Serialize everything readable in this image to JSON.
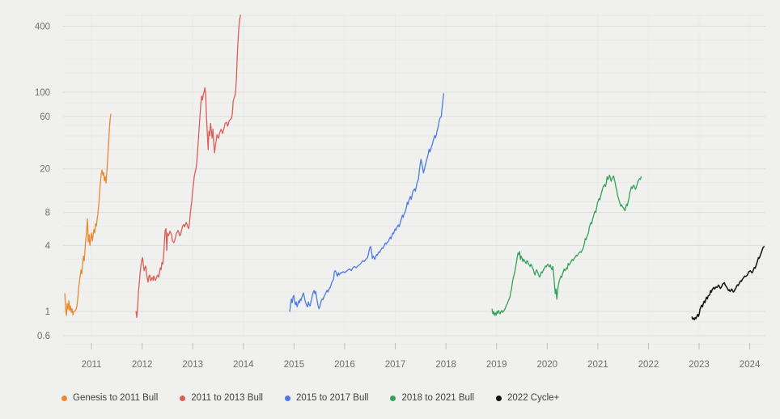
{
  "style": {
    "background": "#f0f0ee",
    "grid_major": "#dcdcda",
    "grid_minor": "#e9e9e7",
    "grid_vertical": "#ebebe9",
    "tick_color": "#bdbdbb",
    "axis_text": "#6e6e6e",
    "legend_text": "#3f3f3f"
  },
  "chart_data": {
    "type": "line",
    "title": "",
    "y_axis": {
      "scale": "log",
      "labeled_ticks": [
        400,
        100,
        60,
        20,
        8,
        4,
        1,
        0.6
      ],
      "minor_gridlines": [
        500,
        300,
        200,
        150,
        80,
        50,
        40,
        30,
        15,
        10,
        6,
        3,
        2,
        1.5,
        0.8,
        0.5
      ],
      "range": [
        0.5,
        520
      ]
    },
    "x_axis": {
      "ticks": [
        2011,
        2012,
        2013,
        2014,
        2015,
        2016,
        2017,
        2018,
        2019,
        2020,
        2021,
        2022,
        2023,
        2024
      ],
      "range": [
        2010.44,
        2024.31
      ]
    },
    "grid": true,
    "legend_position": "bottom",
    "series": [
      {
        "name": "Genesis to 2011 Bull",
        "color": "#ea8a30",
        "start_year": 2010.473,
        "year_step": 0.016,
        "values": [
          1.45,
          1.05,
          0.92,
          1.18,
          1.05,
          1.25,
          1.02,
          1.12,
          0.98,
          1.06,
          0.93,
          1.0,
          1.0,
          1.02,
          1.05,
          1.12,
          1.3,
          1.6,
          1.85,
          2.1,
          2.4,
          2.2,
          2.7,
          3.2,
          2.9,
          3.7,
          4.6,
          5.5,
          7.0,
          4.3,
          5.0,
          4.0,
          4.6,
          5.2,
          4.4,
          5.0,
          5.6,
          5.2,
          6.3,
          6.0,
          7.0,
          8.0,
          9.5,
          12,
          15,
          18,
          19.5,
          17.5,
          18.5,
          15.5,
          17,
          14.8,
          19,
          25,
          33,
          45,
          57,
          63
        ]
      },
      {
        "name": "2011 to 2013 Bull",
        "color": "#e05d55",
        "start_year": 2011.879,
        "year_step": 0.016,
        "values": [
          1.0,
          0.88,
          1.1,
          1.5,
          1.8,
          2.2,
          2.6,
          2.9,
          3.1,
          2.7,
          2.35,
          2.5,
          2.6,
          2.2,
          2.0,
          1.85,
          2.1,
          2.15,
          1.9,
          1.95,
          2.05,
          1.92,
          2.1,
          2.0,
          1.92,
          2.0,
          2.1,
          2.15,
          2.05,
          2.25,
          2.5,
          2.4,
          2.8,
          2.7,
          3.1,
          4.2,
          5.5,
          5.7,
          3.6,
          5.2,
          4.9,
          5.1,
          5.4,
          5.2,
          5.0,
          4.4,
          4.3,
          4.25,
          4.5,
          4.8,
          5.2,
          5.3,
          5.5,
          5.2,
          4.9,
          5.0,
          5.4,
          5.8,
          6.1,
          6.2,
          5.9,
          6.2,
          6.5,
          6.2,
          5.9,
          5.7,
          6.3,
          7.7,
          9.0,
          10.2,
          12.7,
          14.5,
          17.0,
          18.5,
          20.0,
          23.0,
          29.0,
          37.0,
          48.0,
          62.0,
          78.0,
          92.0,
          85.0,
          95.0,
          100,
          110,
          95.0,
          60.0,
          42.0,
          30.0,
          44.0,
          40.0,
          52.0,
          45.0,
          38.0,
          46.0,
          34.0,
          28.0,
          33.0,
          36.0,
          41.0,
          39.0,
          38.0,
          42.0,
          44.0,
          46.0,
          44.0,
          42.0,
          45.0,
          48.0,
          52.0,
          53.0,
          53.0,
          49.0,
          51.0,
          55.0,
          56.0,
          57.0,
          58.0,
          64.0,
          83.0,
          88.0,
          92.0,
          101,
          133,
          210,
          300,
          390,
          460,
          505
        ]
      },
      {
        "name": "2015 to 2017 Bull",
        "color": "#4b7ae8",
        "start_year": 2014.916,
        "year_step": 0.016,
        "values": [
          1.0,
          1.15,
          1.3,
          1.2,
          1.35,
          1.4,
          1.25,
          1.15,
          1.22,
          1.1,
          1.16,
          1.25,
          1.2,
          1.3,
          1.26,
          1.35,
          1.42,
          1.47,
          1.35,
          1.25,
          1.18,
          1.13,
          1.1,
          1.22,
          1.15,
          1.12,
          1.2,
          1.3,
          1.4,
          1.5,
          1.55,
          1.45,
          1.52,
          1.35,
          1.22,
          1.12,
          1.06,
          1.1,
          1.18,
          1.26,
          1.3,
          1.28,
          1.35,
          1.4,
          1.45,
          1.5,
          1.56,
          1.5,
          1.56,
          1.62,
          1.66,
          1.75,
          1.85,
          1.9,
          1.96,
          2.3,
          2.36,
          2.3,
          2.15,
          2.1,
          2.25,
          2.15,
          2.22,
          2.26,
          2.24,
          2.28,
          2.3,
          2.28,
          2.26,
          2.3,
          2.32,
          2.36,
          2.4,
          2.42,
          2.44,
          2.4,
          2.36,
          2.44,
          2.5,
          2.54,
          2.57,
          2.53,
          2.5,
          2.55,
          2.6,
          2.63,
          2.66,
          2.7,
          2.76,
          2.83,
          2.9,
          2.87,
          2.85,
          2.92,
          3.0,
          3.05,
          3.1,
          3.3,
          3.6,
          3.85,
          3.9,
          3.5,
          3.05,
          3.2,
          3.1,
          2.98,
          3.15,
          3.3,
          3.25,
          3.4,
          3.5,
          3.45,
          3.6,
          3.7,
          3.8,
          3.75,
          3.9,
          4.05,
          4.2,
          4.1,
          4.25,
          4.3,
          4.4,
          4.6,
          4.77,
          4.6,
          4.9,
          5.2,
          5.1,
          5.4,
          5.66,
          5.5,
          5.8,
          6.0,
          6.15,
          5.9,
          6.3,
          6.7,
          7.1,
          7.55,
          7.2,
          7.7,
          7.95,
          8.4,
          8.9,
          9.9,
          9.5,
          10.3,
          10.8,
          11.2,
          10.5,
          11.5,
          12.5,
          12.8,
          13.1,
          12.5,
          13.5,
          14.7,
          15.5,
          16.3,
          19.5,
          22.0,
          24.4,
          22.5,
          20.6,
          18.3,
          19.5,
          21.0,
          22.5,
          24.0,
          25.6,
          27.5,
          30.3,
          28.5,
          30.0,
          31.9,
          33.5,
          36.0,
          38.0,
          40.3,
          38.5,
          41.0,
          44.6,
          48.0,
          53.0,
          57.0,
          59.0,
          60.0,
          72.0,
          84.0,
          97.0
        ]
      },
      {
        "name": "2018 to 2021 Bull",
        "color": "#32a356",
        "start_year": 2018.911,
        "year_step": 0.016,
        "values": [
          1.05,
          0.95,
          1.0,
          0.92,
          0.97,
          0.92,
          1.0,
          0.96,
          1.02,
          0.98,
          0.95,
          1.0,
          1.02,
          0.98,
          1.0,
          1.02,
          1.05,
          1.1,
          1.15,
          1.18,
          1.25,
          1.3,
          1.35,
          1.5,
          1.6,
          1.83,
          2.0,
          2.13,
          2.3,
          2.52,
          2.79,
          3.1,
          3.41,
          3.3,
          3.52,
          2.98,
          3.2,
          3.05,
          2.85,
          3.0,
          2.9,
          2.8,
          2.74,
          2.9,
          2.85,
          2.7,
          2.65,
          2.57,
          2.7,
          2.6,
          2.5,
          2.4,
          2.24,
          2.15,
          2.3,
          2.4,
          2.3,
          2.2,
          2.1,
          2.06,
          2.2,
          2.3,
          2.25,
          2.35,
          2.45,
          2.5,
          2.6,
          2.55,
          2.65,
          2.7,
          2.6,
          2.55,
          2.66,
          2.5,
          2.4,
          2.57,
          2.2,
          1.8,
          1.45,
          1.6,
          1.29,
          1.55,
          1.75,
          1.9,
          2.0,
          2.1,
          2.05,
          2.2,
          2.3,
          2.44,
          2.35,
          2.4,
          2.5,
          2.45,
          2.74,
          2.65,
          2.7,
          2.8,
          2.9,
          2.98,
          2.9,
          3.0,
          3.1,
          3.15,
          3.25,
          3.2,
          3.3,
          3.4,
          3.45,
          3.52,
          3.45,
          3.6,
          3.7,
          3.9,
          4.18,
          4.62,
          4.5,
          4.8,
          5.0,
          5.2,
          5.84,
          6.2,
          6.47,
          6.3,
          6.9,
          7.3,
          7.8,
          8.2,
          8.0,
          8.8,
          9.7,
          10.2,
          10.7,
          10.4,
          11.2,
          12.1,
          12.8,
          13.7,
          14.0,
          14.4,
          13.8,
          14.8,
          16.9,
          16.0,
          16.5,
          17.5,
          16.5,
          15.4,
          16.2,
          16.8,
          17.2,
          16.0,
          14.9,
          13.5,
          12.7,
          11.4,
          10.8,
          10.2,
          9.6,
          9.1,
          9.4,
          9.0,
          8.9,
          8.6,
          8.3,
          8.9,
          9.5,
          9.2,
          10.0,
          10.7,
          12.1,
          12.8,
          13.7,
          13.2,
          14.0,
          14.2,
          13.4,
          13.0,
          13.6,
          14.4,
          15.4,
          15.8,
          16.3,
          16.0,
          16.9
        ]
      },
      {
        "name": "2022 Cycle+",
        "color": "#111111",
        "start_year": 2022.859,
        "year_step": 0.016,
        "values": [
          0.89,
          0.85,
          0.87,
          0.84,
          0.88,
          0.86,
          0.9,
          0.94,
          0.9,
          0.95,
          1.05,
          1.1,
          1.14,
          1.1,
          1.18,
          1.24,
          1.2,
          1.28,
          1.35,
          1.3,
          1.38,
          1.4,
          1.42,
          1.55,
          1.5,
          1.58,
          1.62,
          1.66,
          1.6,
          1.64,
          1.68,
          1.65,
          1.7,
          1.74,
          1.68,
          1.62,
          1.65,
          1.7,
          1.78,
          1.8,
          1.83,
          1.75,
          1.7,
          1.66,
          1.6,
          1.55,
          1.58,
          1.52,
          1.55,
          1.6,
          1.55,
          1.5,
          1.53,
          1.58,
          1.62,
          1.7,
          1.75,
          1.72,
          1.78,
          1.85,
          1.9,
          1.88,
          1.95,
          2.0,
          2.05,
          2.1,
          2.08,
          2.1,
          2.13,
          2.2,
          2.3,
          2.32,
          2.35,
          2.3,
          2.25,
          2.3,
          2.42,
          2.52,
          2.48,
          2.6,
          2.75,
          2.9,
          3.1,
          3.05,
          3.2,
          3.35,
          3.5,
          3.7,
          3.85,
          3.9
        ]
      }
    ]
  }
}
